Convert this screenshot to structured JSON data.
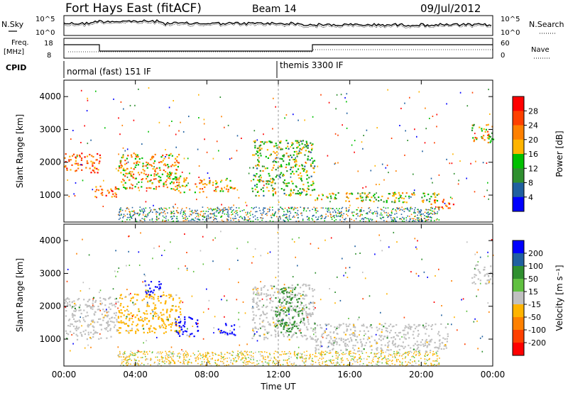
{
  "header": {
    "station": "Fort Hays East (fitACF)",
    "beam": "Beam 14",
    "date": "09/Jul/2012"
  },
  "strip_labels": {
    "noise_sky": "N.Sky",
    "noise_ticks": [
      "10^5",
      "10^0"
    ],
    "noise_search": "N.Search",
    "freq_label_1": "Freq.",
    "freq_label_2": "[MHz]",
    "freq_ticks": [
      "18",
      "8"
    ],
    "nave": "Nave",
    "nave_ticks": [
      "60",
      "0"
    ],
    "cpid": "CPID",
    "cpid_modes": [
      "normal (fast) 151 IF",
      "themis 3300 IF"
    ]
  },
  "chart_data": [
    {
      "type": "heatmap",
      "name": "power-panel",
      "ylabel": "Slant Range [km]",
      "xlabel": "",
      "x_range": [
        0,
        24
      ],
      "y_range": [
        180,
        4500
      ],
      "yticks": [
        1000,
        2000,
        3000,
        4000
      ],
      "xticks": [
        0,
        4,
        8,
        12,
        16,
        20,
        24
      ],
      "colorbar": {
        "label": "Power [dB]",
        "ticks": [
          "28",
          "24",
          "20",
          "16",
          "12",
          "8",
          "4"
        ],
        "colors": [
          "#ff0000",
          "#ff4000",
          "#ff8000",
          "#ffb400",
          "#00c000",
          "#2f8f2f",
          "#2060a0",
          "#0000ff"
        ]
      },
      "regions": [
        {
          "t0": 0.0,
          "t1": 2.0,
          "r0": 1700,
          "r1": 2300,
          "level": 22
        },
        {
          "t0": 1.6,
          "t1": 3.0,
          "r0": 950,
          "r1": 1300,
          "level": 20
        },
        {
          "t0": 3.0,
          "t1": 6.5,
          "r0": 1200,
          "r1": 2300,
          "level": 18
        },
        {
          "t0": 6.0,
          "t1": 7.0,
          "r0": 1100,
          "r1": 1600,
          "level": 16
        },
        {
          "t0": 7.3,
          "t1": 8.3,
          "r0": 1100,
          "r1": 1500,
          "level": 18
        },
        {
          "t0": 8.3,
          "t1": 9.6,
          "r0": 1100,
          "r1": 1500,
          "level": 18
        },
        {
          "t0": 10.5,
          "t1": 14.0,
          "r0": 1000,
          "r1": 2700,
          "level": 12
        },
        {
          "t0": 14.0,
          "t1": 21.0,
          "r0": 800,
          "r1": 1100,
          "level": 14
        },
        {
          "t0": 20.5,
          "t1": 21.8,
          "r0": 600,
          "r1": 900,
          "level": 22
        },
        {
          "t0": 22.8,
          "t1": 24.0,
          "r0": 2600,
          "r1": 3200,
          "level": 16
        }
      ]
    },
    {
      "type": "heatmap",
      "name": "velocity-panel",
      "ylabel": "Slant Range [km]",
      "xlabel": "Time UT",
      "x_range": [
        0,
        24
      ],
      "y_range": [
        180,
        4500
      ],
      "yticks": [
        1000,
        2000,
        3000,
        4000
      ],
      "xticks": [
        0,
        4,
        8,
        12,
        16,
        20,
        24
      ],
      "xticklabels": [
        "00:00",
        "04:00",
        "08:00",
        "12:00",
        "16:00",
        "20:00",
        "00:00"
      ],
      "colorbar": {
        "label": "Velocity [m s⁻¹]",
        "ticks": [
          "200",
          "100",
          "50",
          "15",
          "-15",
          "-50",
          "-100",
          "-200"
        ],
        "colors": [
          "#0000ff",
          "#2060a0",
          "#2f8f2f",
          "#60c040",
          "#c0c0c0",
          "#ffb400",
          "#ff8000",
          "#ff4000",
          "#ff0000"
        ]
      },
      "regions": [
        {
          "t0": 0.0,
          "t1": 3.0,
          "r0": 1000,
          "r1": 2300,
          "level": 0
        },
        {
          "t0": 3.0,
          "t1": 6.5,
          "r0": 1200,
          "r1": 2400,
          "level": -50
        },
        {
          "t0": 4.5,
          "t1": 5.5,
          "r0": 2300,
          "r1": 2800,
          "level": 200
        },
        {
          "t0": 6.2,
          "t1": 7.5,
          "r0": 1100,
          "r1": 1700,
          "level": 200
        },
        {
          "t0": 8.6,
          "t1": 9.6,
          "r0": 1100,
          "r1": 1500,
          "level": 200
        },
        {
          "t0": 10.5,
          "t1": 14.0,
          "r0": 1000,
          "r1": 2700,
          "level": 0
        },
        {
          "t0": 11.8,
          "t1": 13.4,
          "r0": 1200,
          "r1": 2600,
          "level": 50
        },
        {
          "t0": 14.0,
          "t1": 21.5,
          "r0": 650,
          "r1": 1500,
          "level": 0
        },
        {
          "t0": 22.8,
          "t1": 24.0,
          "r0": 2700,
          "r1": 3300,
          "level": 0
        }
      ]
    }
  ]
}
